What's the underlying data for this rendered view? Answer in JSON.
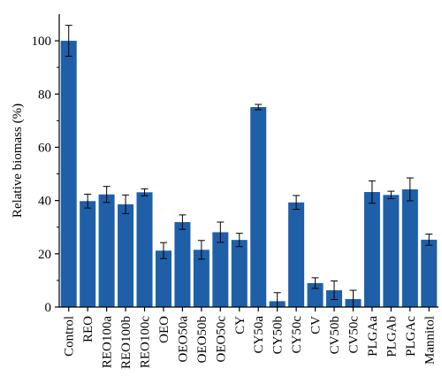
{
  "chart_data": {
    "type": "bar",
    "title": "",
    "xlabel": "",
    "ylabel": "Relative biomass (%)",
    "ylim": [
      0,
      110
    ],
    "yticks": [
      0,
      20,
      40,
      60,
      80,
      100
    ],
    "grid": false,
    "legend": "none",
    "bar_color": "#1f5fa8",
    "categories": [
      "Control",
      "REO",
      "REO100a",
      "REO100b",
      "REO100c",
      "OEO",
      "OEO50a",
      "OEO50b",
      "OEO50c",
      "CY",
      "CY50a",
      "CY50b",
      "CY50c",
      "CV",
      "CV50b",
      "CV50c",
      "PLGAa",
      "PLGAb",
      "PLGAc",
      "Mannitol"
    ],
    "values": [
      100,
      39.8,
      42.3,
      38.6,
      43.1,
      21.2,
      31.9,
      21.5,
      28.1,
      25.2,
      75.1,
      2.2,
      39.3,
      9.0,
      6.3,
      3.0,
      43.2,
      42.1,
      44.2,
      25.3
    ],
    "errors": [
      5.8,
      2.6,
      3.0,
      3.5,
      1.3,
      3.0,
      2.7,
      3.5,
      3.8,
      2.5,
      1.0,
      3.2,
      2.6,
      2.0,
      3.5,
      3.3,
      4.2,
      1.4,
      4.3,
      2.1
    ]
  }
}
